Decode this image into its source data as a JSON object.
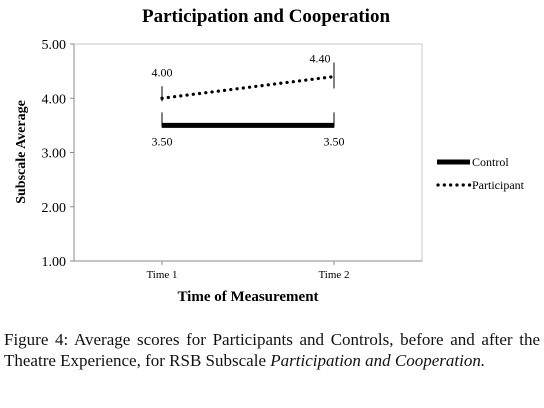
{
  "chart_data": {
    "type": "line",
    "title": "Participation and Cooperation",
    "xlabel": "Time of Measurement",
    "ylabel": "Subscale Average",
    "categories": [
      "Time 1",
      "Time 2"
    ],
    "ylim": [
      1.0,
      5.0
    ],
    "yticks": [
      "1.00",
      "2.00",
      "3.00",
      "4.00",
      "5.00"
    ],
    "grid": false,
    "legend_position": "right",
    "series": [
      {
        "name": "Control",
        "values": [
          3.5,
          3.5
        ],
        "labels": [
          "3.50",
          "3.50"
        ],
        "style": "solid-thick",
        "color": "#000000"
      },
      {
        "name": "Participant",
        "values": [
          4.0,
          4.4
        ],
        "labels": [
          "4.00",
          "4.40"
        ],
        "style": "dotted",
        "color": "#000000"
      }
    ]
  },
  "caption": {
    "label": "Figure 4:",
    "text_before": " Average scores for Participants and Controls, before and after the Theatre Experience, for RSB Subscale ",
    "text_italic": "Participation and Cooperation.",
    "text_after": ""
  }
}
